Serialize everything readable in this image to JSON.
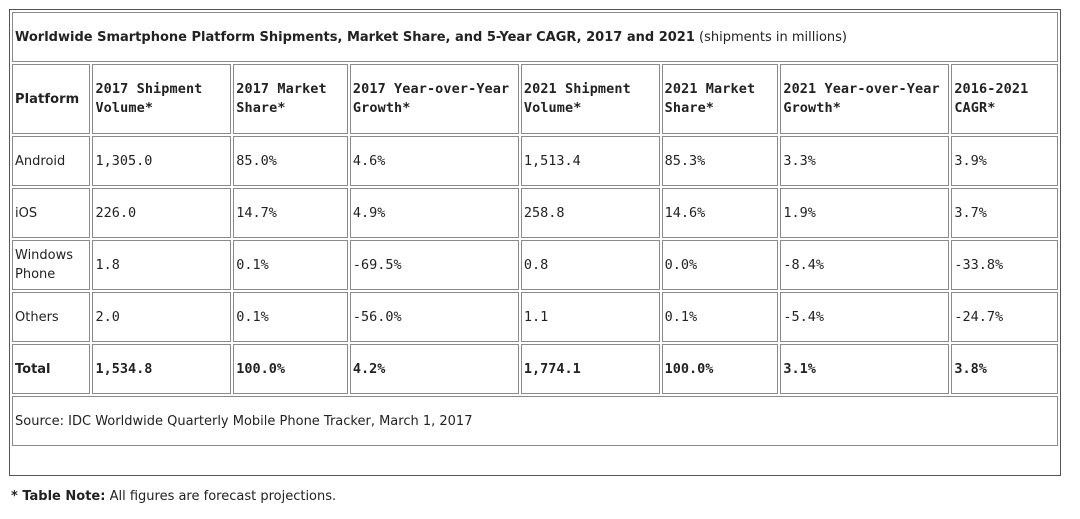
{
  "table": {
    "title": "Worldwide Smartphone Platform Shipments, Market Share, and 5-Year CAGR, 2017 and 2021",
    "title_unit": "(shipments in millions)",
    "headers": [
      "Platform",
      "2017 Shipment Volume*",
      "2017 Market Share*",
      "2017 Year-over-Year Growth*",
      "2021 Shipment Volume*",
      "2021 Market Share*",
      "2021 Year-over-Year Growth*",
      "2016-2021 CAGR*"
    ],
    "rows": [
      [
        "Android",
        "1,305.0",
        "85.0%",
        "4.6%",
        "1,513.4",
        "85.3%",
        "3.3%",
        "3.9%"
      ],
      [
        "iOS",
        "226.0",
        "14.7%",
        "4.9%",
        "258.8",
        "14.6%",
        "1.9%",
        "3.7%"
      ],
      [
        "Windows Phone",
        "1.8",
        "0.1%",
        "-69.5%",
        "0.8",
        "0.0%",
        "-8.4%",
        "-33.8%"
      ],
      [
        "Others",
        "2.0",
        "0.1%",
        "-56.0%",
        "1.1",
        "0.1%",
        "-5.4%",
        "-24.7%"
      ]
    ],
    "total": [
      "Total",
      "1,534.8",
      "100.0%",
      "4.2%",
      "1,774.1",
      "100.0%",
      "3.1%",
      "3.8%"
    ],
    "source": "Source: IDC Worldwide Quarterly Mobile Phone Tracker, March 1, 2017"
  },
  "note": {
    "label": "* Table Note:",
    "text": "All figures are forecast projections."
  }
}
